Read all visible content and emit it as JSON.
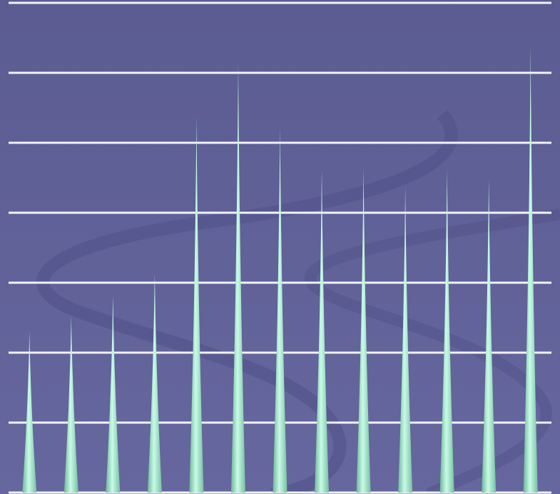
{
  "chart_data": {
    "type": "spike",
    "categories": [
      null,
      null,
      null,
      null,
      null,
      null,
      null,
      null,
      null,
      null,
      null,
      null,
      null
    ],
    "values": [
      2.3,
      2.52,
      2.81,
      3.13,
      5.38,
      6.14,
      5.22,
      4.63,
      4.65,
      4.37,
      4.63,
      4.49,
      6.38
    ],
    "color": "#a8f0d2",
    "ylim": [
      0,
      7
    ],
    "yticks": [
      0,
      1,
      2,
      3,
      4,
      5,
      6,
      7
    ],
    "grid": true
  }
}
